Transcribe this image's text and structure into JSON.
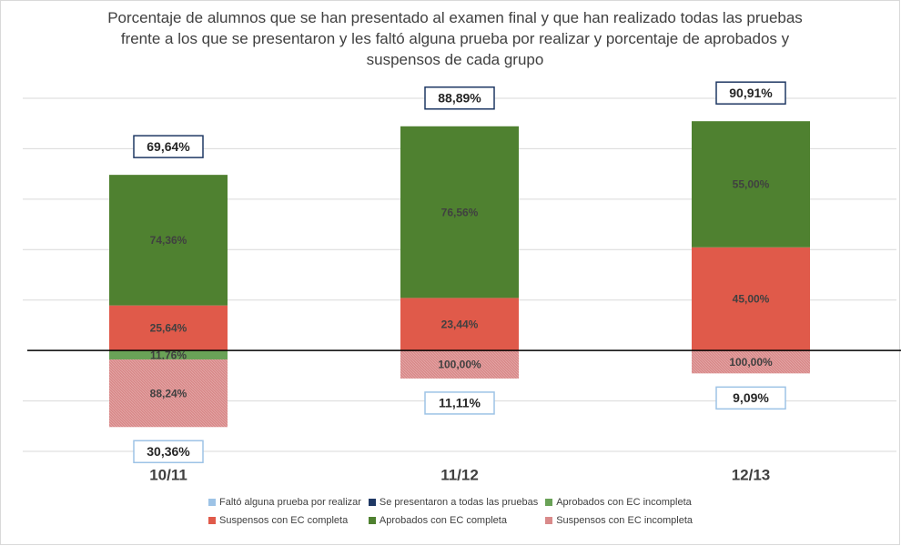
{
  "chart_data": {
    "type": "stacked-bar",
    "title": "Porcentaje de alumnos que se han presentado al examen final y que han realizado todas las pruebas frente a los que se presentaron y les faltó alguna prueba por realizar y porcentaje de aprobados y suspensos de cada grupo",
    "categories": [
      "10/11",
      "11/12",
      "12/13"
    ],
    "ylim": [
      -40,
      100
    ],
    "yticks": [
      -40,
      -20,
      0,
      20,
      40,
      60,
      80,
      100
    ],
    "grid": true,
    "series": [
      {
        "name": "Faltó alguna prueba por realizar",
        "color": "#9dc3e6",
        "stack": "down",
        "style": "box",
        "values": [
          30.36,
          11.11,
          9.09
        ],
        "value_labels": [
          "30,36%",
          "11,11%",
          "9,09%"
        ]
      },
      {
        "name": "Se presentaron a todas las pruebas",
        "color": "#1f3864",
        "stack": "up",
        "style": "box",
        "values": [
          69.64,
          88.89,
          90.91
        ],
        "value_labels": [
          "69,64%",
          "88,89%",
          "90,91%"
        ]
      },
      {
        "name": "Aprobados con EC incompleta",
        "color": "#6aa257",
        "stack": "down",
        "style": "fill",
        "values": [
          11.76,
          null,
          null
        ],
        "value_labels": [
          "11,76%",
          null,
          null
        ]
      },
      {
        "name": "Suspensos con EC completa",
        "color": "#e05a4a",
        "stack": "up",
        "style": "fill",
        "values": [
          25.64,
          23.44,
          45.0
        ],
        "value_labels": [
          "25,64%",
          "23,44%",
          "45,00%"
        ]
      },
      {
        "name": "Aprobados con EC completa",
        "color": "#4f8130",
        "stack": "up",
        "style": "fill",
        "values": [
          74.36,
          76.56,
          55.0
        ],
        "value_labels": [
          "74,36%",
          "76,56%",
          "55,00%"
        ]
      },
      {
        "name": "Suspensos con EC incompleta",
        "color": "#d98a8a",
        "stack": "down",
        "style": "hatch",
        "values": [
          88.24,
          100.0,
          100.0
        ],
        "value_labels": [
          "88,24%",
          "100,00%",
          "100,00%"
        ]
      }
    ]
  }
}
